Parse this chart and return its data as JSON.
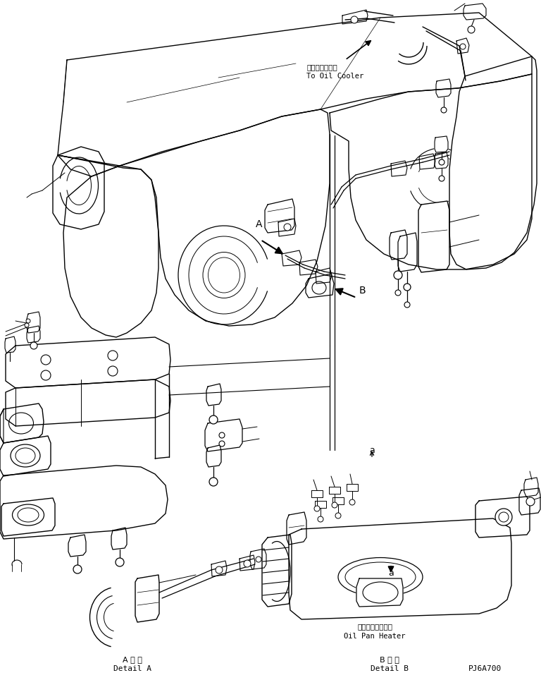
{
  "bg_color": "#ffffff",
  "fig_width": 7.68,
  "fig_height": 9.81,
  "dpi": 100,
  "lc": "#000000",
  "lw": 0.7,
  "labels": {
    "oil_cooler_jp": "オイルクーラヘ",
    "oil_cooler_en": "To Oil Cooler",
    "detail_a_jp": "A 詳 細",
    "detail_a_en": "Detail A",
    "detail_b_jp": "B 詳 細",
    "detail_b_en": "Detail B",
    "part_num": "PJ6A700",
    "oil_pan_heater_jp": "オイルパンヒータ",
    "oil_pan_heater_en": "Oil Pan Heater",
    "label_A": "A",
    "label_B": "B",
    "label_a": "a"
  }
}
